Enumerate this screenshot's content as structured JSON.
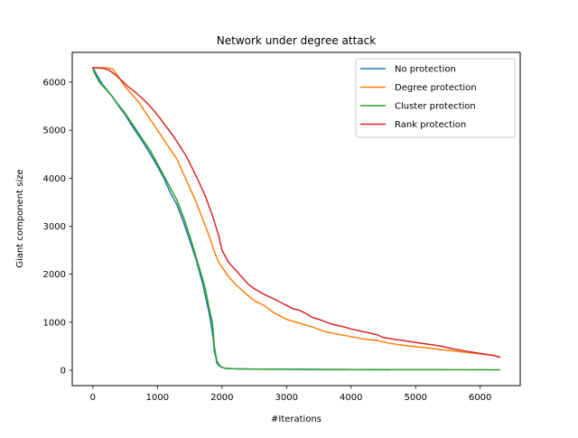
{
  "chart_data": {
    "type": "line",
    "title": "Network under degree attack",
    "xlabel": "#Iterations",
    "ylabel": "Giant component size",
    "xlim": [
      -320,
      6620
    ],
    "ylim": [
      -320,
      6620
    ],
    "xticks": [
      0,
      1000,
      2000,
      3000,
      4000,
      5000,
      6000
    ],
    "yticks": [
      0,
      1000,
      2000,
      3000,
      4000,
      5000,
      6000
    ],
    "grid": false,
    "legend_position": "top-right",
    "series": [
      {
        "name": "No protection",
        "color": "#1f77b4",
        "points": [
          [
            0,
            6300
          ],
          [
            60,
            6150
          ],
          [
            150,
            5950
          ],
          [
            300,
            5700
          ],
          [
            400,
            5500
          ],
          [
            500,
            5320
          ],
          [
            600,
            5100
          ],
          [
            700,
            4900
          ],
          [
            800,
            4700
          ],
          [
            900,
            4480
          ],
          [
            1000,
            4250
          ],
          [
            1100,
            4000
          ],
          [
            1200,
            3700
          ],
          [
            1300,
            3450
          ],
          [
            1400,
            3100
          ],
          [
            1500,
            2700
          ],
          [
            1600,
            2300
          ],
          [
            1700,
            1800
          ],
          [
            1750,
            1500
          ],
          [
            1800,
            1200
          ],
          [
            1830,
            950
          ],
          [
            1860,
            700
          ],
          [
            1870,
            600
          ],
          [
            1880,
            400
          ],
          [
            1900,
            300
          ],
          [
            1920,
            150
          ],
          [
            1950,
            100
          ],
          [
            2000,
            60
          ],
          [
            2050,
            40
          ],
          [
            2200,
            30
          ],
          [
            2500,
            25
          ],
          [
            3000,
            20
          ],
          [
            3500,
            15
          ],
          [
            4000,
            12
          ],
          [
            4600,
            10
          ]
        ]
      },
      {
        "name": "Degree protection",
        "color": "#ff7f0e",
        "points": [
          [
            0,
            6300
          ],
          [
            200,
            6300
          ],
          [
            300,
            6280
          ],
          [
            350,
            6200
          ],
          [
            400,
            6100
          ],
          [
            500,
            5900
          ],
          [
            600,
            5750
          ],
          [
            700,
            5600
          ],
          [
            800,
            5400
          ],
          [
            900,
            5200
          ],
          [
            1000,
            5000
          ],
          [
            1100,
            4800
          ],
          [
            1200,
            4600
          ],
          [
            1300,
            4400
          ],
          [
            1400,
            4100
          ],
          [
            1500,
            3800
          ],
          [
            1600,
            3500
          ],
          [
            1700,
            3150
          ],
          [
            1800,
            2800
          ],
          [
            1850,
            2600
          ],
          [
            1900,
            2400
          ],
          [
            1950,
            2250
          ],
          [
            2000,
            2150
          ],
          [
            2100,
            1950
          ],
          [
            2200,
            1800
          ],
          [
            2300,
            1680
          ],
          [
            2400,
            1560
          ],
          [
            2500,
            1450
          ],
          [
            2650,
            1350
          ],
          [
            2800,
            1200
          ],
          [
            3000,
            1060
          ],
          [
            3200,
            980
          ],
          [
            3400,
            900
          ],
          [
            3600,
            800
          ],
          [
            3800,
            750
          ],
          [
            4000,
            700
          ],
          [
            4200,
            650
          ],
          [
            4400,
            620
          ],
          [
            4600,
            560
          ],
          [
            4800,
            520
          ],
          [
            5000,
            490
          ],
          [
            5200,
            460
          ],
          [
            5400,
            430
          ],
          [
            5600,
            400
          ],
          [
            5800,
            370
          ],
          [
            6000,
            340
          ],
          [
            6200,
            310
          ],
          [
            6300,
            280
          ]
        ]
      },
      {
        "name": "Cluster protection",
        "color": "#2ca02c",
        "points": [
          [
            0,
            6300
          ],
          [
            20,
            6200
          ],
          [
            60,
            6100
          ],
          [
            100,
            6000
          ],
          [
            200,
            5850
          ],
          [
            300,
            5700
          ],
          [
            400,
            5520
          ],
          [
            500,
            5350
          ],
          [
            600,
            5150
          ],
          [
            700,
            4950
          ],
          [
            800,
            4750
          ],
          [
            900,
            4550
          ],
          [
            1000,
            4300
          ],
          [
            1100,
            4050
          ],
          [
            1200,
            3800
          ],
          [
            1300,
            3550
          ],
          [
            1400,
            3200
          ],
          [
            1500,
            2800
          ],
          [
            1600,
            2350
          ],
          [
            1700,
            1900
          ],
          [
            1750,
            1650
          ],
          [
            1800,
            1300
          ],
          [
            1850,
            1000
          ],
          [
            1870,
            700
          ],
          [
            1880,
            500
          ],
          [
            1900,
            350
          ],
          [
            1920,
            200
          ],
          [
            1950,
            120
          ],
          [
            2000,
            60
          ],
          [
            2050,
            40
          ],
          [
            2200,
            30
          ],
          [
            2500,
            25
          ],
          [
            3000,
            20
          ],
          [
            4000,
            15
          ],
          [
            5000,
            12
          ],
          [
            6300,
            10
          ]
        ]
      },
      {
        "name": "Rank protection",
        "color": "#d62728",
        "points": [
          [
            0,
            6300
          ],
          [
            150,
            6290
          ],
          [
            250,
            6250
          ],
          [
            350,
            6150
          ],
          [
            450,
            6030
          ],
          [
            550,
            5900
          ],
          [
            650,
            5800
          ],
          [
            750,
            5680
          ],
          [
            850,
            5550
          ],
          [
            950,
            5400
          ],
          [
            1050,
            5230
          ],
          [
            1150,
            5050
          ],
          [
            1250,
            4870
          ],
          [
            1350,
            4660
          ],
          [
            1450,
            4450
          ],
          [
            1550,
            4180
          ],
          [
            1650,
            3900
          ],
          [
            1750,
            3600
          ],
          [
            1850,
            3230
          ],
          [
            1950,
            2800
          ],
          [
            2000,
            2500
          ],
          [
            2100,
            2250
          ],
          [
            2200,
            2100
          ],
          [
            2300,
            1950
          ],
          [
            2400,
            1800
          ],
          [
            2500,
            1700
          ],
          [
            2600,
            1620
          ],
          [
            2700,
            1550
          ],
          [
            2800,
            1490
          ],
          [
            2900,
            1420
          ],
          [
            3000,
            1350
          ],
          [
            3100,
            1280
          ],
          [
            3200,
            1250
          ],
          [
            3300,
            1180
          ],
          [
            3400,
            1100
          ],
          [
            3500,
            1060
          ],
          [
            3600,
            1010
          ],
          [
            3700,
            960
          ],
          [
            3800,
            930
          ],
          [
            3900,
            900
          ],
          [
            4000,
            860
          ],
          [
            4100,
            830
          ],
          [
            4200,
            800
          ],
          [
            4300,
            770
          ],
          [
            4400,
            740
          ],
          [
            4500,
            680
          ],
          [
            4600,
            660
          ],
          [
            4700,
            640
          ],
          [
            4800,
            620
          ],
          [
            4900,
            600
          ],
          [
            5000,
            580
          ],
          [
            5100,
            560
          ],
          [
            5200,
            540
          ],
          [
            5300,
            520
          ],
          [
            5400,
            500
          ],
          [
            5500,
            470
          ],
          [
            5600,
            440
          ],
          [
            5700,
            420
          ],
          [
            5800,
            390
          ],
          [
            5900,
            370
          ],
          [
            6000,
            350
          ],
          [
            6100,
            330
          ],
          [
            6200,
            310
          ],
          [
            6300,
            270
          ]
        ]
      }
    ]
  }
}
